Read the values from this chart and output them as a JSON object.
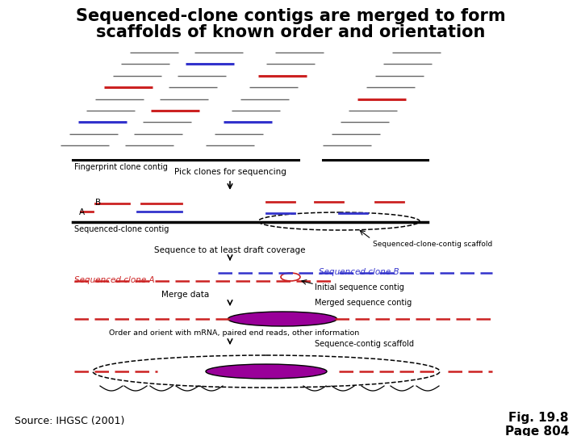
{
  "title_line1": "Sequenced-clone contigs are merged to form",
  "title_line2": "scaffolds of known order and orientation",
  "title_fontsize": 15,
  "source_text": "Source: IHGSC (2001)",
  "fig_text": "Fig. 19.8\nPage 804",
  "bg_color": "#ffffff",
  "colors": {
    "black": "#000000",
    "dark_gray": "#666666",
    "blue": "#3333CC",
    "red": "#CC2222",
    "purple": "#990099",
    "gray": "#999999"
  }
}
